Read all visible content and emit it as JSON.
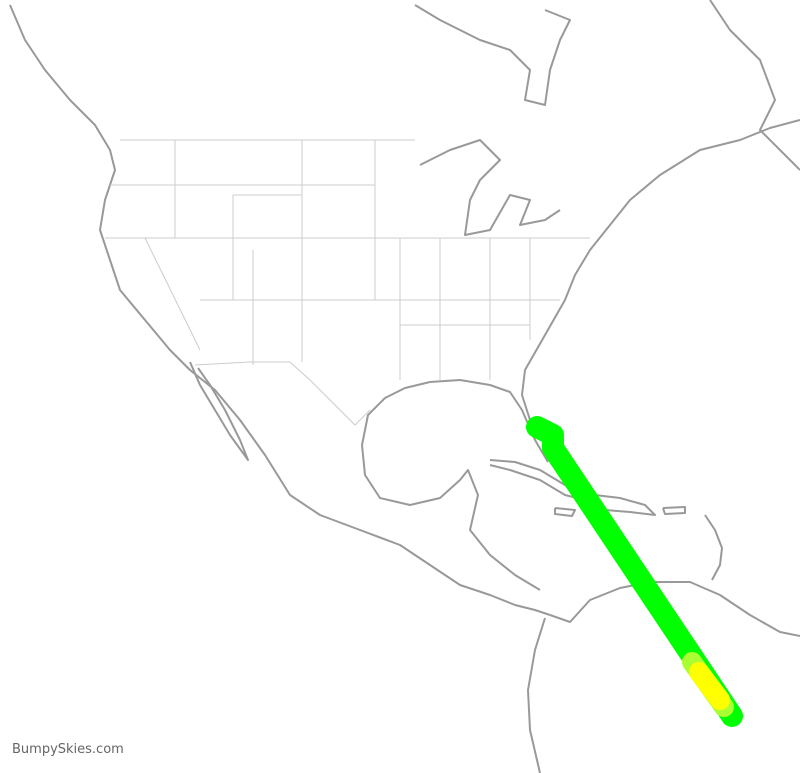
{
  "watermark": "BumpySkies.com",
  "route": {
    "colors": {
      "smooth": "#00ff00",
      "light": "#aaff33",
      "moderate": "#ffff00"
    }
  }
}
